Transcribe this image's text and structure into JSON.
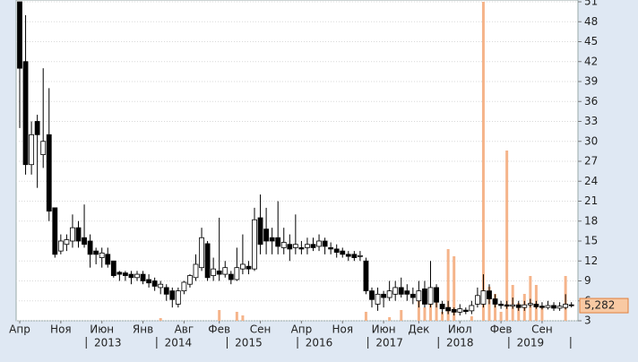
{
  "chart_data": {
    "type": "candlestick",
    "categories": [
      "Апр",
      null,
      null,
      null,
      null,
      null,
      null,
      "Ноя",
      null,
      null,
      null,
      null,
      null,
      null,
      "Июн",
      null,
      null,
      null,
      null,
      null,
      null,
      "Янв",
      null,
      null,
      null,
      null,
      null,
      null,
      "Авг",
      null,
      null,
      null,
      null,
      null,
      "Фев",
      null,
      null,
      null,
      null,
      null,
      null,
      "Сен",
      null,
      null,
      null,
      null,
      null,
      null,
      "Апр",
      null,
      null,
      null,
      null,
      null,
      null,
      "Ноя",
      null,
      null,
      null,
      null,
      null,
      null,
      "Июн",
      null,
      null,
      null,
      null,
      null,
      "Дек",
      null,
      null,
      null,
      null,
      null,
      null,
      "Июл",
      null,
      null,
      null,
      null,
      null,
      null,
      "Фев",
      null,
      null,
      null,
      null,
      null,
      null,
      "Сен",
      null,
      null,
      null,
      null,
      null
    ],
    "year_labels": [
      "2013",
      "2014",
      "2015",
      "2016",
      "2017",
      "2018",
      "2019"
    ],
    "open": [
      51,
      42,
      26.5,
      33,
      28,
      31,
      20,
      13.5,
      14.5,
      15,
      17,
      15.5,
      15,
      13.5,
      12.5,
      13,
      12,
      10.3,
      10.2,
      10,
      9.5,
      10,
      9.2,
      9,
      8,
      8,
      7.5,
      5.5,
      7.5,
      8.5,
      9.5,
      11,
      14.6,
      9.8,
      10.5,
      10,
      10,
      9.2,
      10.8,
      11.2,
      10.8,
      18.5,
      16.8,
      15.5,
      15.5,
      14,
      14.5,
      14,
      14,
      14,
      14.5,
      14.2,
      15,
      14,
      13.8,
      13.5,
      13,
      13,
      12.7,
      12,
      7.5,
      5.5,
      7,
      6.5,
      7,
      8,
      7.5,
      7,
      6,
      7.8,
      5.5,
      8,
      5.5,
      5,
      4.7,
      4.3,
      4.6,
      4.5,
      5.5,
      5.5,
      7.5,
      6.3,
      5.5,
      5.4,
      5.2,
      5.4,
      5,
      5.4,
      5.5,
      5.2,
      5,
      5.3,
      4.9,
      5,
      5.4
    ],
    "high": [
      51,
      49,
      33,
      34,
      41,
      38,
      20,
      16,
      16,
      19,
      18,
      20.5,
      16,
      14,
      14,
      14,
      12,
      10.5,
      10.5,
      10.5,
      10.5,
      10.5,
      10,
      9.5,
      9,
      8.5,
      8,
      8,
      9,
      10,
      13,
      17,
      15,
      12.5,
      18.5,
      12,
      10.5,
      14,
      16,
      12,
      20,
      22,
      20,
      17,
      21,
      17,
      16,
      19,
      15,
      15.5,
      15.5,
      16,
      15.5,
      14.8,
      14.5,
      14,
      13.5,
      13.5,
      13.5,
      12.5,
      8,
      8,
      7.5,
      9,
      9,
      9.5,
      8.5,
      8,
      9,
      9,
      12,
      8.5,
      6,
      6,
      5,
      5.5,
      5,
      6,
      8,
      10,
      8.5,
      7,
      6,
      6,
      6.5,
      6,
      6,
      6.3,
      6,
      5.8,
      6,
      5.8,
      5.8,
      7,
      5.8
    ],
    "low": [
      32,
      25,
      25,
      23,
      26,
      18,
      12.5,
      13,
      13.5,
      14,
      14,
      14,
      11,
      11.5,
      11,
      11,
      9.5,
      9,
      9,
      8.5,
      9,
      8.5,
      8,
      7.5,
      7,
      6,
      5,
      5,
      7,
      8,
      9,
      10.5,
      9,
      9,
      9,
      9.5,
      8.5,
      9,
      10,
      10,
      10.5,
      13,
      13,
      13,
      13,
      13,
      12,
      13,
      13,
      13,
      13.5,
      13.5,
      13,
      13,
      12.5,
      12.5,
      12,
      12,
      12,
      7,
      5,
      4.5,
      5,
      6,
      6,
      6.5,
      6,
      5.5,
      5,
      5,
      5,
      5,
      4,
      4,
      3.8,
      3.8,
      4,
      4,
      5,
      5,
      5.5,
      5,
      4.8,
      4.8,
      4.8,
      4.5,
      4.5,
      5,
      4.8,
      4.7,
      4.7,
      4.5,
      4.5,
      4.7,
      5
    ],
    "close": [
      41,
      26.5,
      31,
      31,
      30,
      19.5,
      13,
      15,
      15.2,
      17,
      15,
      14.5,
      13,
      13,
      13.2,
      11.5,
      9.8,
      10,
      9.8,
      9.5,
      10,
      9,
      8.7,
      8.2,
      8.5,
      7,
      6.2,
      7.5,
      8.8,
      9.8,
      11.5,
      15.5,
      9.5,
      10.8,
      10,
      11,
      9.2,
      11,
      11.5,
      10.8,
      18.2,
      14.5,
      15,
      15,
      14.2,
      14.8,
      13.8,
      14.5,
      13.8,
      14.5,
      14,
      15,
      14.2,
      13.8,
      13.3,
      13,
      12.7,
      12.5,
      12.8,
      7.5,
      6.2,
      7,
      6.5,
      7.5,
      8,
      7,
      7,
      6.5,
      7.5,
      5.5,
      8,
      5.8,
      4.8,
      4.5,
      4.3,
      4.8,
      4.4,
      5.3,
      6.8,
      7.5,
      6.3,
      5.5,
      5.3,
      5.2,
      5.4,
      5,
      5.4,
      5.6,
      5.1,
      5,
      5.3,
      4.9,
      5.2,
      5.5,
      5.282
    ],
    "volume": [
      0,
      0,
      0,
      0,
      0,
      0,
      0,
      0,
      0,
      0,
      0,
      0,
      0,
      0,
      0,
      0,
      0,
      0,
      0,
      0,
      0,
      0,
      0,
      0,
      3,
      0,
      0,
      0,
      0,
      0,
      0,
      0,
      0,
      0,
      12,
      0,
      0,
      10,
      6,
      0,
      0,
      0,
      0,
      0,
      0,
      0,
      0,
      0,
      0,
      0,
      0,
      0,
      0,
      0,
      0,
      0,
      0,
      0,
      0,
      10,
      0,
      0,
      0,
      4,
      0,
      12,
      0,
      0,
      30,
      15,
      20,
      30,
      10,
      80,
      72,
      0,
      0,
      5,
      0,
      356,
      38,
      30,
      10,
      190,
      40,
      20,
      30,
      50,
      40,
      15,
      0,
      0,
      0,
      50,
      0
    ],
    "volume_color": "#f5b48a",
    "up_color": "#ffffff",
    "down_color": "#000000",
    "last_price": {
      "value": 5.282,
      "label": "5,282"
    },
    "ylim": [
      3,
      51
    ],
    "yticks": [
      3,
      6,
      9,
      12,
      15,
      18,
      21,
      24,
      27,
      30,
      33,
      36,
      39,
      42,
      45,
      48,
      51
    ],
    "grid": true
  }
}
